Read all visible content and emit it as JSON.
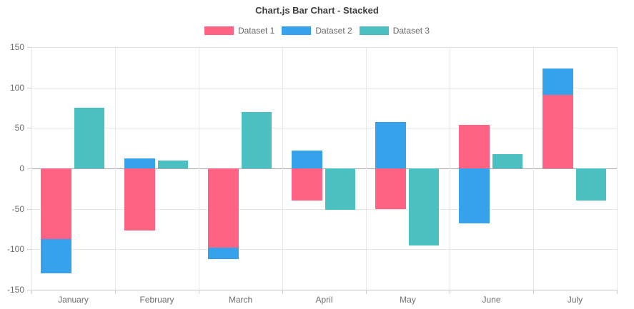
{
  "header": {
    "title": "Chart.js Bar Chart - Stacked"
  },
  "chart_data": {
    "type": "bar",
    "stacked": true,
    "title": "Chart.js Bar Chart - Stacked",
    "categories": [
      "January",
      "February",
      "March",
      "April",
      "May",
      "June",
      "July"
    ],
    "series": [
      {
        "name": "Dataset 1",
        "color": "#FF6384",
        "stack": "stack-0",
        "values": [
          -87,
          -77,
          -98,
          -40,
          -50,
          54,
          91
        ]
      },
      {
        "name": "Dataset 2",
        "color": "#36A2EB",
        "stack": "stack-0",
        "values": [
          -43,
          12,
          -14,
          22,
          57,
          -68,
          33
        ]
      },
      {
        "name": "Dataset 3",
        "color": "#4BC0C0",
        "stack": "stack-1",
        "values": [
          75,
          10,
          70,
          -51,
          -95,
          18,
          -40
        ]
      }
    ],
    "ylim": [
      -150,
      150
    ],
    "ytick_step": 50,
    "yticks": [
      150,
      100,
      50,
      0,
      -50,
      -100,
      -150
    ],
    "grid": true,
    "legend_position": "top",
    "axis_text_color": "#6e6e6e",
    "gridline_color": "#e8e8e8",
    "zero_line_color": "#a8a8a8"
  }
}
